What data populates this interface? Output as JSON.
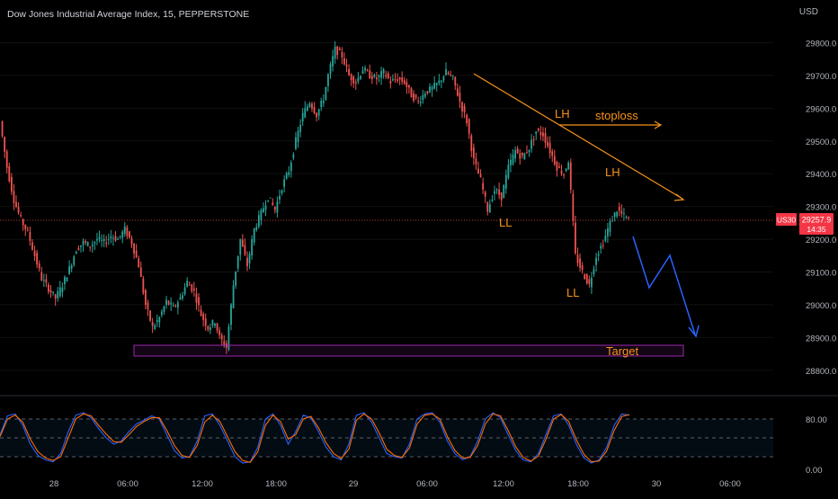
{
  "header": {
    "title": "Dow Jones Industrial Average Index, 15, PEPPERSTONE",
    "currency": "USD"
  },
  "price_badge": {
    "symbol": "US30",
    "price": "29257.9",
    "countdown": "14:35",
    "color": "#f23645"
  },
  "colors": {
    "up": "#26a69a",
    "down": "#ef5350",
    "annotation": "#f7931a",
    "projection": "#2962ff",
    "target_box": "#9c27b0",
    "stoch_k": "#2962ff",
    "stoch_d": "#ff6d00"
  },
  "chart_data": [
    {
      "type": "candlestick",
      "y_axis": {
        "ticks": [
          "29800.0",
          "29700.0",
          "29600.0",
          "29500.0",
          "29400.0",
          "29300.0",
          "29200.0",
          "29100.0",
          "29000.0",
          "28900.0",
          "28800.0"
        ],
        "range": [
          28750,
          29870
        ]
      },
      "x_axis": {
        "ticks": [
          "28",
          "06:00",
          "12:00",
          "18:00",
          "29",
          "06:00",
          "12:00",
          "18:00",
          "30",
          "06:00"
        ]
      },
      "last_price": 29257.9,
      "price_path": [
        [
          0,
          29560
        ],
        [
          3,
          29420
        ],
        [
          6,
          29320
        ],
        [
          9,
          29260
        ],
        [
          12,
          29220
        ],
        [
          15,
          29150
        ],
        [
          18,
          29080
        ],
        [
          21,
          29050
        ],
        [
          24,
          29020
        ],
        [
          27,
          29060
        ],
        [
          30,
          29110
        ],
        [
          33,
          29170
        ],
        [
          36,
          29190
        ],
        [
          39,
          29180
        ],
        [
          42,
          29200
        ],
        [
          45,
          29190
        ],
        [
          48,
          29210
        ],
        [
          51,
          29200
        ],
        [
          54,
          29230
        ],
        [
          57,
          29190
        ],
        [
          60,
          29120
        ],
        [
          63,
          29000
        ],
        [
          66,
          28930
        ],
        [
          69,
          28960
        ],
        [
          72,
          29010
        ],
        [
          75,
          28990
        ],
        [
          78,
          29020
        ],
        [
          81,
          29070
        ],
        [
          84,
          29040
        ],
        [
          87,
          28970
        ],
        [
          90,
          28930
        ],
        [
          93,
          28950
        ],
        [
          95,
          28900
        ],
        [
          98,
          28870
        ],
        [
          101,
          29060
        ],
        [
          104,
          29200
        ],
        [
          107,
          29120
        ],
        [
          110,
          29230
        ],
        [
          113,
          29280
        ],
        [
          116,
          29330
        ],
        [
          119,
          29290
        ],
        [
          122,
          29360
        ],
        [
          125,
          29410
        ],
        [
          128,
          29500
        ],
        [
          131,
          29580
        ],
        [
          134,
          29620
        ],
        [
          137,
          29580
        ],
        [
          140,
          29630
        ],
        [
          142,
          29700
        ],
        [
          145,
          29780
        ],
        [
          148,
          29760
        ],
        [
          151,
          29700
        ],
        [
          154,
          29680
        ],
        [
          157,
          29720
        ],
        [
          160,
          29700
        ],
        [
          163,
          29690
        ],
        [
          166,
          29710
        ],
        [
          169,
          29680
        ],
        [
          172,
          29690
        ],
        [
          175,
          29680
        ],
        [
          178,
          29640
        ],
        [
          181,
          29620
        ],
        [
          184,
          29650
        ],
        [
          187,
          29660
        ],
        [
          190,
          29680
        ],
        [
          193,
          29710
        ],
        [
          196,
          29690
        ],
        [
          199,
          29620
        ],
        [
          202,
          29560
        ],
        [
          205,
          29440
        ],
        [
          208,
          29380
        ],
        [
          211,
          29290
        ],
        [
          214,
          29350
        ],
        [
          217,
          29330
        ],
        [
          220,
          29420
        ],
        [
          223,
          29470
        ],
        [
          226,
          29450
        ],
        [
          229,
          29480
        ],
        [
          232,
          29530
        ],
        [
          235,
          29520
        ],
        [
          238,
          29470
        ],
        [
          241,
          29420
        ],
        [
          244,
          29400
        ],
        [
          246,
          29440
        ],
        [
          249,
          29150
        ],
        [
          252,
          29100
        ],
        [
          255,
          29060
        ],
        [
          258,
          29150
        ],
        [
          261,
          29190
        ],
        [
          264,
          29250
        ],
        [
          267,
          29290
        ],
        [
          270,
          29270
        ],
        [
          272,
          29258
        ]
      ]
    },
    {
      "type": "line",
      "name": "Stochastic",
      "y_axis": {
        "ticks": [
          "80.00",
          "0.00"
        ],
        "range": [
          0,
          100
        ],
        "levels": [
          80,
          50,
          20
        ]
      },
      "series": [
        {
          "name": "%K",
          "values": [
            55,
            85,
            88,
            70,
            40,
            22,
            15,
            12,
            25,
            60,
            86,
            90,
            82,
            65,
            50,
            40,
            45,
            60,
            72,
            78,
            85,
            80,
            55,
            30,
            18,
            20,
            45,
            85,
            88,
            70,
            45,
            20,
            10,
            12,
            35,
            80,
            88,
            70,
            40,
            60,
            86,
            82,
            60,
            35,
            20,
            15,
            40,
            86,
            90,
            75,
            50,
            25,
            20,
            18,
            40,
            80,
            88,
            90,
            75,
            45,
            25,
            15,
            20,
            45,
            80,
            90,
            82,
            55,
            30,
            15,
            12,
            25,
            55,
            85,
            88,
            70,
            40,
            18,
            10,
            15,
            35,
            70,
            88,
            86
          ]
        },
        {
          "name": "%D",
          "values": [
            52,
            80,
            86,
            75,
            48,
            28,
            18,
            14,
            20,
            50,
            80,
            88,
            85,
            70,
            56,
            44,
            43,
            55,
            68,
            76,
            82,
            82,
            62,
            38,
            22,
            19,
            38,
            75,
            86,
            76,
            52,
            28,
            14,
            11,
            28,
            70,
            86,
            76,
            48,
            55,
            80,
            84,
            66,
            42,
            25,
            17,
            32,
            78,
            88,
            80,
            58,
            32,
            22,
            19,
            34,
            72,
            86,
            88,
            80,
            52,
            30,
            18,
            19,
            38,
            72,
            88,
            85,
            62,
            36,
            19,
            13,
            21,
            48,
            80,
            87,
            76,
            47,
            24,
            12,
            13,
            29,
            62,
            84,
            87
          ]
        }
      ]
    }
  ],
  "annotations": {
    "lh1": "LH",
    "lh2": "LH",
    "ll1": "LL",
    "ll2": "LL",
    "stoploss": "stoploss",
    "target": "Target"
  }
}
